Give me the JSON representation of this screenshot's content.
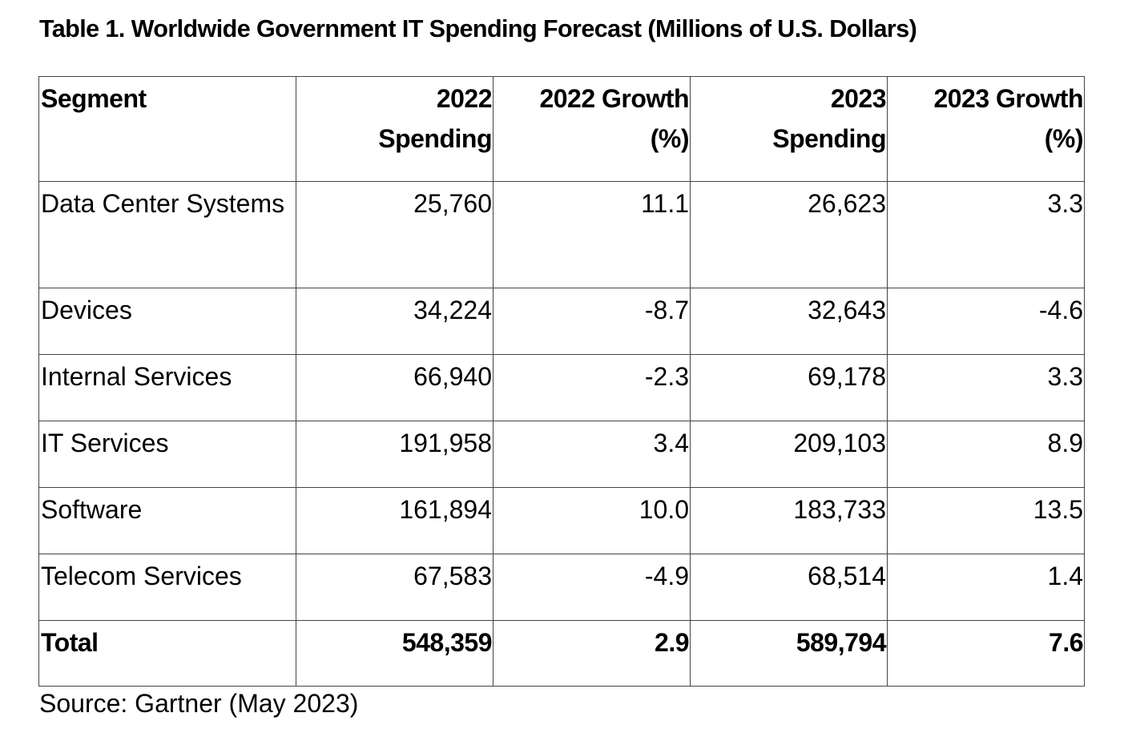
{
  "title": "Table 1. Worldwide Government IT Spending Forecast (Millions of U.S. Dollars)",
  "table": {
    "headers": [
      {
        "line1": "Segment",
        "line2": ""
      },
      {
        "line1": "2022",
        "line2": "Spending"
      },
      {
        "line1": "2022 Growth",
        "line2": "(%)"
      },
      {
        "line1": "2023",
        "line2": "Spending"
      },
      {
        "line1": "2023 Growth",
        "line2": "(%)"
      }
    ],
    "rows": [
      {
        "segment": "Data Center Systems",
        "spending_2022": "25,760",
        "growth_2022": "11.1",
        "spending_2023": "26,623",
        "growth_2023": "3.3"
      },
      {
        "segment": "Devices",
        "spending_2022": "34,224",
        "growth_2022": "-8.7",
        "spending_2023": "32,643",
        "growth_2023": "-4.6"
      },
      {
        "segment": "Internal Services",
        "spending_2022": "66,940",
        "growth_2022": "-2.3",
        "spending_2023": "69,178",
        "growth_2023": "3.3"
      },
      {
        "segment": "IT Services",
        "spending_2022": "191,958",
        "growth_2022": "3.4",
        "spending_2023": "209,103",
        "growth_2023": "8.9"
      },
      {
        "segment": "Software",
        "spending_2022": "161,894",
        "growth_2022": "10.0",
        "spending_2023": "183,733",
        "growth_2023": "13.5"
      },
      {
        "segment": "Telecom Services",
        "spending_2022": "67,583",
        "growth_2022": "-4.9",
        "spending_2023": "68,514",
        "growth_2023": "1.4"
      }
    ],
    "total": {
      "segment": "Total",
      "spending_2022": "548,359",
      "growth_2022": "2.9",
      "spending_2023": "589,794",
      "growth_2023": "7.6"
    }
  },
  "source": "Source: Gartner (May 2023)"
}
